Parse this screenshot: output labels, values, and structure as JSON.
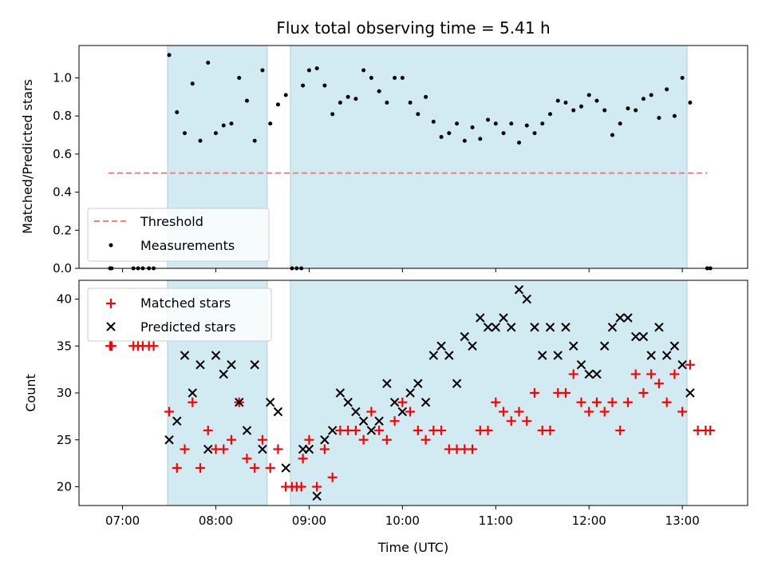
{
  "chart_data": [
    {
      "type": "scatter",
      "title": "Flux total observing time = 5.41 h",
      "ylabel": "Matched/Predicted stars",
      "xlabel": "",
      "ylim": [
        0,
        1.17
      ],
      "xlim": [
        "06:32",
        "13:42"
      ],
      "y_ticks": [
        "0.0",
        "0.2",
        "0.4",
        "0.6",
        "0.8",
        "1.0"
      ],
      "y_tick_values": [
        0,
        0.2,
        0.4,
        0.6,
        0.8,
        1.0
      ],
      "x_tick_values": [
        "07:00",
        "08:00",
        "09:00",
        "10:00",
        "11:00",
        "12:00",
        "13:00"
      ],
      "show_x_tick_labels": false,
      "shaded_intervals": [
        [
          "07:29",
          "08:33"
        ],
        [
          "08:48",
          "13:03"
        ]
      ],
      "threshold": {
        "name": "Threshold",
        "value": 0.5,
        "x_range": [
          "06:51",
          "13:16"
        ],
        "color": "#f08080"
      },
      "series": [
        {
          "name": "Measurements",
          "color": "#000000",
          "points": [
            [
              "06:52",
              0
            ],
            [
              "06:53",
              0
            ],
            [
              "07:07",
              0
            ],
            [
              "07:10",
              0
            ],
            [
              "07:13",
              0
            ],
            [
              "07:17",
              0
            ],
            [
              "07:20",
              0
            ],
            [
              "07:30",
              1.12
            ],
            [
              "07:35",
              0.82
            ],
            [
              "07:40",
              0.71
            ],
            [
              "07:45",
              0.97
            ],
            [
              "07:50",
              0.67
            ],
            [
              "07:55",
              1.08
            ],
            [
              "08:00",
              0.71
            ],
            [
              "08:05",
              0.75
            ],
            [
              "08:10",
              0.76
            ],
            [
              "08:15",
              1.0
            ],
            [
              "08:20",
              0.88
            ],
            [
              "08:25",
              0.67
            ],
            [
              "08:30",
              1.04
            ],
            [
              "08:35",
              0.76
            ],
            [
              "08:40",
              0.86
            ],
            [
              "08:45",
              0.91
            ],
            [
              "08:49",
              0
            ],
            [
              "08:52",
              0
            ],
            [
              "08:55",
              0
            ],
            [
              "08:56",
              0.96
            ],
            [
              "09:00",
              1.04
            ],
            [
              "09:05",
              1.05
            ],
            [
              "09:10",
              0.96
            ],
            [
              "09:15",
              0.81
            ],
            [
              "09:20",
              0.87
            ],
            [
              "09:25",
              0.9
            ],
            [
              "09:30",
              0.89
            ],
            [
              "09:35",
              1.04
            ],
            [
              "09:40",
              1.0
            ],
            [
              "09:45",
              0.93
            ],
            [
              "09:50",
              0.87
            ],
            [
              "09:55",
              1.0
            ],
            [
              "10:00",
              1.0
            ],
            [
              "10:05",
              0.87
            ],
            [
              "10:10",
              0.81
            ],
            [
              "10:15",
              0.9
            ],
            [
              "10:20",
              0.77
            ],
            [
              "10:25",
              0.69
            ],
            [
              "10:30",
              0.71
            ],
            [
              "10:35",
              0.76
            ],
            [
              "10:40",
              0.67
            ],
            [
              "10:45",
              0.74
            ],
            [
              "10:50",
              0.68
            ],
            [
              "10:55",
              0.78
            ],
            [
              "11:00",
              0.76
            ],
            [
              "11:05",
              0.71
            ],
            [
              "11:10",
              0.76
            ],
            [
              "11:15",
              0.66
            ],
            [
              "11:20",
              0.75
            ],
            [
              "11:25",
              0.71
            ],
            [
              "11:30",
              0.76
            ],
            [
              "11:35",
              0.81
            ],
            [
              "11:40",
              0.88
            ],
            [
              "11:45",
              0.87
            ],
            [
              "11:50",
              0.83
            ],
            [
              "11:55",
              0.85
            ],
            [
              "12:00",
              0.91
            ],
            [
              "12:05",
              0.88
            ],
            [
              "12:10",
              0.83
            ],
            [
              "12:15",
              0.7
            ],
            [
              "12:20",
              0.76
            ],
            [
              "12:25",
              0.84
            ],
            [
              "12:30",
              0.83
            ],
            [
              "12:35",
              0.89
            ],
            [
              "12:40",
              0.91
            ],
            [
              "12:45",
              0.79
            ],
            [
              "12:50",
              0.94
            ],
            [
              "12:55",
              0.8
            ],
            [
              "13:00",
              1.0
            ],
            [
              "13:05",
              0.87
            ],
            [
              "13:16",
              0
            ],
            [
              "13:18",
              0
            ]
          ]
        }
      ],
      "legend": {
        "placement": "lower-left",
        "entries": [
          "Threshold",
          "Measurements"
        ]
      }
    },
    {
      "type": "scatter",
      "title": "",
      "xlabel": "Time (UTC)",
      "ylabel": "Count",
      "ylim": [
        18,
        42
      ],
      "xlim": [
        "06:32",
        "13:42"
      ],
      "y_ticks": [
        "20",
        "25",
        "30",
        "35",
        "40"
      ],
      "y_tick_values": [
        20,
        25,
        30,
        35,
        40
      ],
      "x_ticks": [
        "07:00",
        "08:00",
        "09:00",
        "10:00",
        "11:00",
        "12:00",
        "13:00"
      ],
      "shaded_intervals": [
        [
          "07:29",
          "08:33"
        ],
        [
          "08:48",
          "13:03"
        ]
      ],
      "series": [
        {
          "name": "Matched stars",
          "marker": "plus",
          "color": "#ff0000",
          "points": [
            [
              "06:52",
              35
            ],
            [
              "06:53",
              35
            ],
            [
              "07:07",
              35
            ],
            [
              "07:10",
              35
            ],
            [
              "07:13",
              35
            ],
            [
              "07:17",
              35
            ],
            [
              "07:20",
              35
            ],
            [
              "07:30",
              28
            ],
            [
              "07:35",
              22
            ],
            [
              "07:40",
              24
            ],
            [
              "07:45",
              29
            ],
            [
              "07:50",
              22
            ],
            [
              "07:55",
              26
            ],
            [
              "08:00",
              24
            ],
            [
              "08:05",
              24
            ],
            [
              "08:10",
              25
            ],
            [
              "08:15",
              29
            ],
            [
              "08:20",
              23
            ],
            [
              "08:25",
              22
            ],
            [
              "08:30",
              25
            ],
            [
              "08:35",
              22
            ],
            [
              "08:40",
              24
            ],
            [
              "08:45",
              20
            ],
            [
              "08:49",
              20
            ],
            [
              "08:52",
              20
            ],
            [
              "08:55",
              20
            ],
            [
              "08:56",
              23
            ],
            [
              "09:00",
              25
            ],
            [
              "09:05",
              20
            ],
            [
              "09:10",
              24
            ],
            [
              "09:15",
              21
            ],
            [
              "09:20",
              26
            ],
            [
              "09:25",
              26
            ],
            [
              "09:30",
              26
            ],
            [
              "09:35",
              25
            ],
            [
              "09:40",
              28
            ],
            [
              "09:45",
              26
            ],
            [
              "09:50",
              25
            ],
            [
              "09:55",
              27
            ],
            [
              "10:00",
              29
            ],
            [
              "10:05",
              28
            ],
            [
              "10:10",
              26
            ],
            [
              "10:15",
              25
            ],
            [
              "10:20",
              26
            ],
            [
              "10:25",
              26
            ],
            [
              "10:30",
              24
            ],
            [
              "10:35",
              24
            ],
            [
              "10:40",
              24
            ],
            [
              "10:45",
              24
            ],
            [
              "10:50",
              26
            ],
            [
              "10:55",
              26
            ],
            [
              "11:00",
              29
            ],
            [
              "11:05",
              28
            ],
            [
              "11:10",
              27
            ],
            [
              "11:15",
              28
            ],
            [
              "11:20",
              27
            ],
            [
              "11:25",
              30
            ],
            [
              "11:30",
              26
            ],
            [
              "11:35",
              26
            ],
            [
              "11:40",
              30
            ],
            [
              "11:45",
              30
            ],
            [
              "11:50",
              32
            ],
            [
              "11:55",
              29
            ],
            [
              "12:00",
              28
            ],
            [
              "12:05",
              29
            ],
            [
              "12:10",
              28
            ],
            [
              "12:15",
              29
            ],
            [
              "12:20",
              26
            ],
            [
              "12:25",
              29
            ],
            [
              "12:30",
              32
            ],
            [
              "12:35",
              30
            ],
            [
              "12:40",
              32
            ],
            [
              "12:45",
              31
            ],
            [
              "12:50",
              29
            ],
            [
              "12:55",
              32
            ],
            [
              "13:00",
              28
            ],
            [
              "13:05",
              33
            ],
            [
              "13:10",
              26
            ],
            [
              "13:15",
              26
            ],
            [
              "13:18",
              26
            ]
          ]
        },
        {
          "name": "Predicted stars",
          "marker": "x",
          "color": "#000000",
          "points": [
            [
              "07:30",
              25
            ],
            [
              "07:35",
              27
            ],
            [
              "07:40",
              34
            ],
            [
              "07:45",
              30
            ],
            [
              "07:50",
              33
            ],
            [
              "07:55",
              24
            ],
            [
              "08:00",
              34
            ],
            [
              "08:05",
              32
            ],
            [
              "08:10",
              33
            ],
            [
              "08:15",
              29
            ],
            [
              "08:20",
              26
            ],
            [
              "08:25",
              33
            ],
            [
              "08:30",
              24
            ],
            [
              "08:35",
              29
            ],
            [
              "08:40",
              28
            ],
            [
              "08:45",
              22
            ],
            [
              "08:56",
              24
            ],
            [
              "09:00",
              24
            ],
            [
              "09:05",
              19
            ],
            [
              "09:10",
              25
            ],
            [
              "09:15",
              26
            ],
            [
              "09:20",
              30
            ],
            [
              "09:25",
              29
            ],
            [
              "09:30",
              28
            ],
            [
              "09:35",
              27
            ],
            [
              "09:40",
              26
            ],
            [
              "09:45",
              27
            ],
            [
              "09:50",
              31
            ],
            [
              "09:55",
              29
            ],
            [
              "10:00",
              28
            ],
            [
              "10:05",
              30
            ],
            [
              "10:10",
              31
            ],
            [
              "10:15",
              29
            ],
            [
              "10:20",
              34
            ],
            [
              "10:25",
              35
            ],
            [
              "10:30",
              34
            ],
            [
              "10:35",
              31
            ],
            [
              "10:40",
              36
            ],
            [
              "10:45",
              35
            ],
            [
              "10:50",
              38
            ],
            [
              "10:55",
              37
            ],
            [
              "11:00",
              37
            ],
            [
              "11:05",
              38
            ],
            [
              "11:10",
              37
            ],
            [
              "11:15",
              41
            ],
            [
              "11:20",
              40
            ],
            [
              "11:25",
              37
            ],
            [
              "11:30",
              34
            ],
            [
              "11:35",
              37
            ],
            [
              "11:40",
              34
            ],
            [
              "11:45",
              37
            ],
            [
              "11:50",
              35
            ],
            [
              "11:55",
              33
            ],
            [
              "12:00",
              32
            ],
            [
              "12:05",
              32
            ],
            [
              "12:10",
              35
            ],
            [
              "12:15",
              37
            ],
            [
              "12:20",
              38
            ],
            [
              "12:25",
              38
            ],
            [
              "12:30",
              36
            ],
            [
              "12:35",
              36
            ],
            [
              "12:40",
              34
            ],
            [
              "12:45",
              37
            ],
            [
              "12:50",
              34
            ],
            [
              "12:55",
              35
            ],
            [
              "13:00",
              33
            ],
            [
              "13:05",
              30
            ]
          ]
        }
      ],
      "legend": {
        "placement": "top-left",
        "entries": [
          "Matched stars",
          "Predicted stars"
        ]
      }
    }
  ],
  "colors": {
    "shade": "#add8e6",
    "threshold": "#f08080",
    "matched": "#ff0000",
    "predicted": "#000000",
    "measurement": "#000000"
  }
}
